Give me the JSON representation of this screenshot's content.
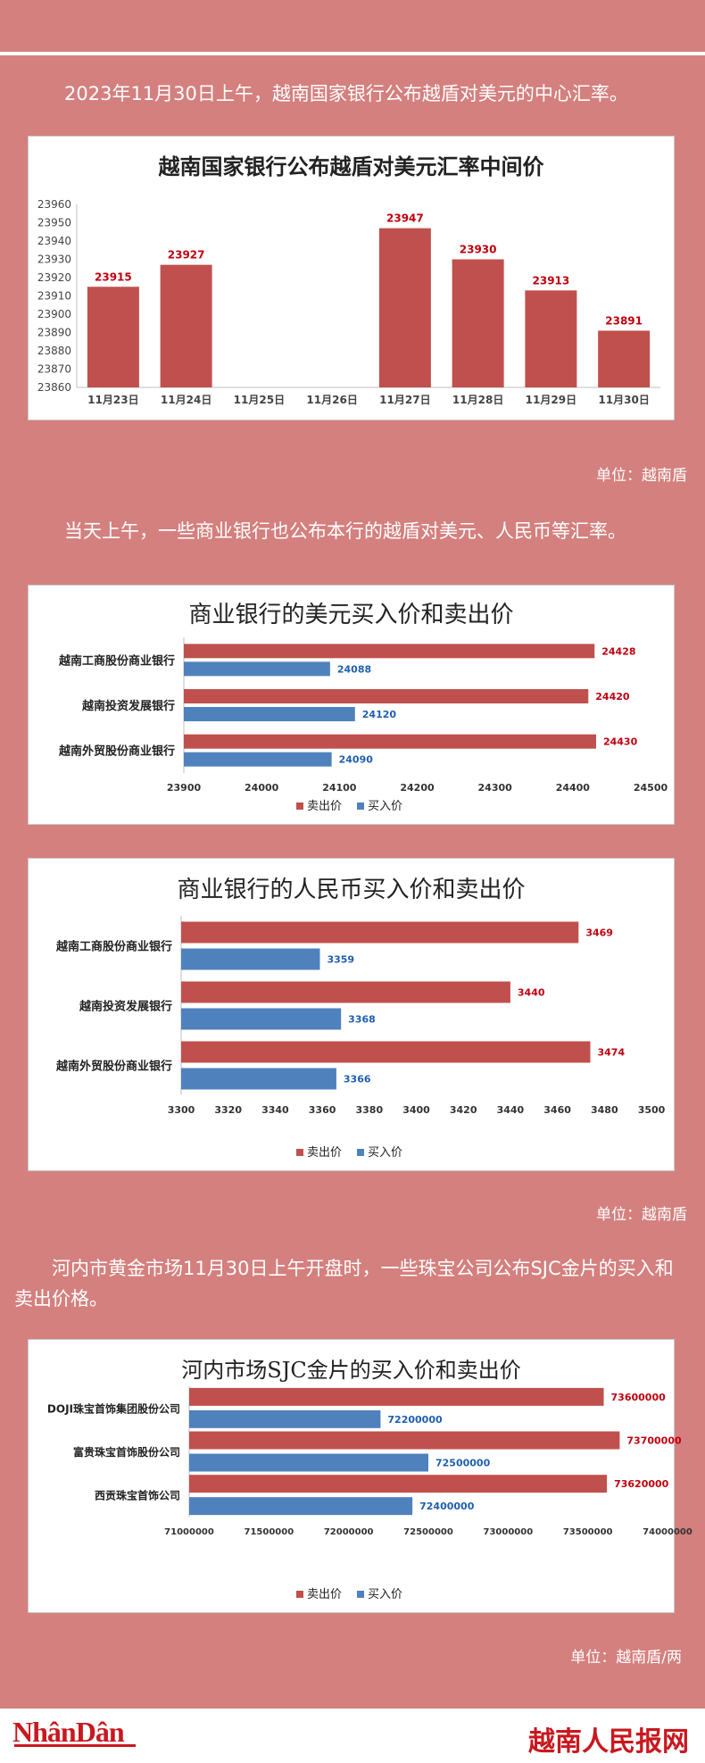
{
  "intro1": "2023年11月30日上午，越南国家银行公布越盾对美元的中心汇率。",
  "unit1": "单位：越南盾",
  "intro2": "当天上午，一些商业银行也公布本行的越盾对美元、人民币等汇率。",
  "unit2": "单位：越南盾",
  "intro3": "河内市黄金市场11月30日上午开盘时，一些珠宝公司公布SJC金片的买入和卖出价格。",
  "unit3": "单位：越南盾/两",
  "logo_left": "NhânDân",
  "logo_right": "越南人民报网",
  "colors": {
    "sell": "#c0504d",
    "buy": "#4f81bd",
    "sell_label": "#c0000f",
    "buy_label": "#1f5fb0"
  },
  "chart_data": [
    {
      "type": "bar",
      "title": "越南国家银行公布越盾对美元汇率中间价",
      "categories": [
        "11月23日",
        "11月24日",
        "11月25日",
        "11月26日",
        "11月27日",
        "11月28日",
        "11月29日",
        "11月30日"
      ],
      "values": [
        23915,
        23927,
        null,
        null,
        23947,
        23930,
        23913,
        23891
      ],
      "ylim": [
        23860,
        23960
      ],
      "yticks": [
        23860,
        23870,
        23880,
        23890,
        23900,
        23910,
        23920,
        23930,
        23940,
        23950,
        23960
      ],
      "grid": false
    },
    {
      "type": "bar",
      "orientation": "horizontal",
      "title": "商业银行的美元买入价和卖出价",
      "categories": [
        "越南工商股份商业银行",
        "越南投资发展银行",
        "越南外贸股份商业银行"
      ],
      "series": [
        {
          "name": "卖出价",
          "values": [
            24428,
            24420,
            24430
          ]
        },
        {
          "name": "买入价",
          "values": [
            24088,
            24120,
            24090
          ]
        }
      ],
      "xlim": [
        23900,
        24500
      ],
      "xticks": [
        23900,
        24000,
        24100,
        24200,
        24300,
        24400,
        24500
      ],
      "legend": "bottom"
    },
    {
      "type": "bar",
      "orientation": "horizontal",
      "title": "商业银行的人民币买入价和卖出价",
      "categories": [
        "越南工商股份商业银行",
        "越南投资发展银行",
        "越南外贸股份商业银行"
      ],
      "series": [
        {
          "name": "卖出价",
          "values": [
            3469,
            3440,
            3474
          ]
        },
        {
          "name": "买入价",
          "values": [
            3359,
            3368,
            3366
          ]
        }
      ],
      "xlim": [
        3300,
        3500
      ],
      "xticks": [
        3300,
        3320,
        3340,
        3360,
        3380,
        3400,
        3420,
        3440,
        3460,
        3480,
        3500
      ],
      "legend": "bottom"
    },
    {
      "type": "bar",
      "orientation": "horizontal",
      "title": "河内市场SJC金片的买入价和卖出价",
      "categories": [
        "DOJI珠宝首饰集团股份公司",
        "富贵珠宝首饰股份公司",
        "西贡珠宝首饰公司"
      ],
      "series": [
        {
          "name": "卖出价",
          "values": [
            73600000,
            73700000,
            73620000
          ]
        },
        {
          "name": "买入价",
          "values": [
            72200000,
            72500000,
            72400000
          ]
        }
      ],
      "xlim": [
        71000000,
        74000000
      ],
      "xticks": [
        71000000,
        71500000,
        72000000,
        72500000,
        73000000,
        73500000,
        74000000
      ],
      "legend": "bottom"
    }
  ]
}
